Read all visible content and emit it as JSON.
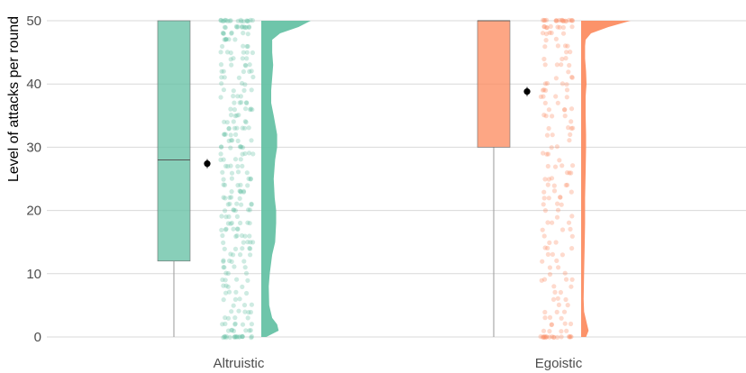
{
  "chart_data": {
    "type": "raincloud",
    "title": "",
    "xlabel": "",
    "ylabel": "Level of attacks per round",
    "ylim": [
      0,
      50
    ],
    "yticks": [
      0,
      10,
      20,
      30,
      40,
      50
    ],
    "grid": true,
    "legend": "none",
    "categories": [
      "Altruistic",
      "Egoistic"
    ],
    "groups": [
      {
        "category": "Altruistic",
        "color": "#66c2a5",
        "box": {
          "min": 0,
          "q1": 12,
          "median": 28,
          "q3": 50,
          "max": 50
        },
        "mean": 27.4,
        "density": [
          [
            0,
            0.1
          ],
          [
            1,
            0.35
          ],
          [
            2,
            0.32
          ],
          [
            3,
            0.22
          ],
          [
            5,
            0.16
          ],
          [
            8,
            0.15
          ],
          [
            10,
            0.17
          ],
          [
            13,
            0.22
          ],
          [
            15,
            0.28
          ],
          [
            18,
            0.3
          ],
          [
            20,
            0.3
          ],
          [
            22,
            0.27
          ],
          [
            25,
            0.25
          ],
          [
            28,
            0.28
          ],
          [
            30,
            0.32
          ],
          [
            32,
            0.32
          ],
          [
            35,
            0.25
          ],
          [
            37,
            0.2
          ],
          [
            39,
            0.2
          ],
          [
            41,
            0.22
          ],
          [
            43,
            0.24
          ],
          [
            45,
            0.22
          ],
          [
            47,
            0.22
          ],
          [
            48,
            0.38
          ],
          [
            49,
            0.75
          ],
          [
            50,
            1.0
          ]
        ]
      },
      {
        "category": "Egoistic",
        "color": "#fc8d62",
        "box": {
          "min": 0,
          "q1": 30,
          "median": 50,
          "q3": 50,
          "max": 50
        },
        "mean": 38.8,
        "density": [
          [
            0,
            0.1
          ],
          [
            1,
            0.15
          ],
          [
            2,
            0.12
          ],
          [
            4,
            0.06
          ],
          [
            6,
            0.05
          ],
          [
            10,
            0.06
          ],
          [
            14,
            0.07
          ],
          [
            18,
            0.08
          ],
          [
            22,
            0.08
          ],
          [
            26,
            0.09
          ],
          [
            30,
            0.1
          ],
          [
            32,
            0.1
          ],
          [
            35,
            0.09
          ],
          [
            38,
            0.09
          ],
          [
            40,
            0.11
          ],
          [
            42,
            0.1
          ],
          [
            44,
            0.08
          ],
          [
            46,
            0.08
          ],
          [
            47,
            0.09
          ],
          [
            48,
            0.2
          ],
          [
            49,
            0.55
          ],
          [
            50,
            1.0
          ]
        ]
      }
    ]
  }
}
